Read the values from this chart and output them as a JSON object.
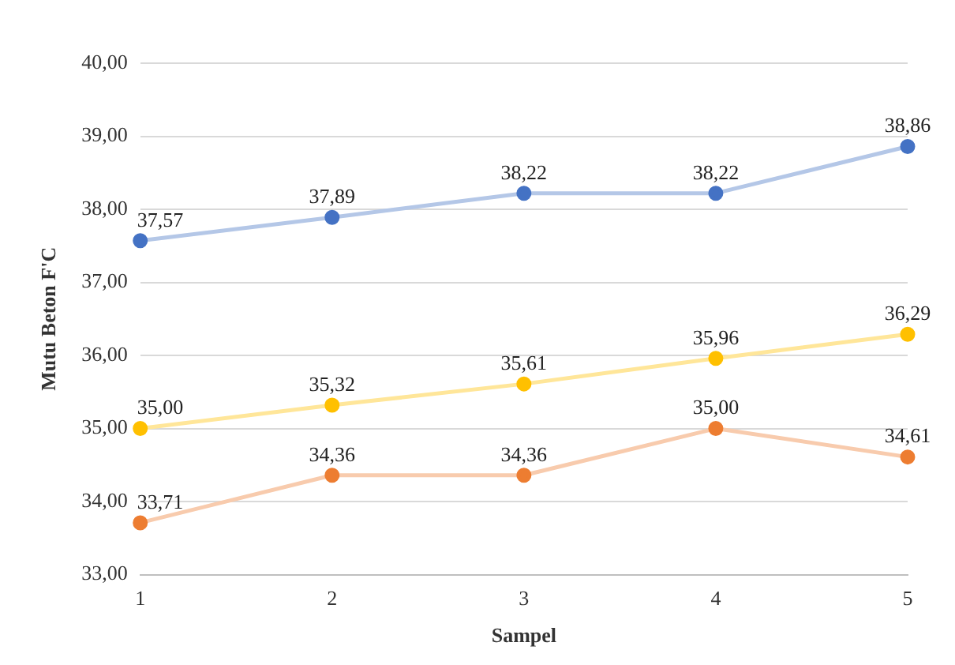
{
  "chart_data": {
    "type": "line",
    "xlabel": "Sampel",
    "ylabel": "Mutu Beton F'C",
    "categories": [
      "1",
      "2",
      "3",
      "4",
      "5"
    ],
    "series": [
      {
        "color": "#4472c4",
        "values": [
          37.57,
          37.89,
          38.22,
          38.22,
          38.86
        ],
        "value_labels": [
          "37,57",
          "37,89",
          "38,22",
          "38,22",
          "38,86"
        ]
      },
      {
        "color": "#ffc000",
        "values": [
          35.0,
          35.32,
          35.61,
          35.96,
          36.29
        ],
        "value_labels": [
          "35,00",
          "35,32",
          "35,61",
          "35,96",
          "36,29"
        ]
      },
      {
        "color": "#ed7d31",
        "values": [
          33.71,
          34.36,
          34.36,
          35.0,
          34.61
        ],
        "value_labels": [
          "33,71",
          "34,36",
          "34,36",
          "35,00",
          "34,61"
        ]
      }
    ],
    "ylim": [
      33,
      40
    ],
    "yticks": [
      {
        "value": 33,
        "label": "33,00"
      },
      {
        "value": 34,
        "label": "34,00"
      },
      {
        "value": 35,
        "label": "35,00"
      },
      {
        "value": 36,
        "label": "36,00"
      },
      {
        "value": 37,
        "label": "37,00"
      },
      {
        "value": 38,
        "label": "38,00"
      },
      {
        "value": 39,
        "label": "39,00"
      },
      {
        "value": 40,
        "label": "40,00"
      }
    ],
    "grid": "y",
    "legend": false,
    "marker": "circle",
    "line_style": "solid"
  }
}
